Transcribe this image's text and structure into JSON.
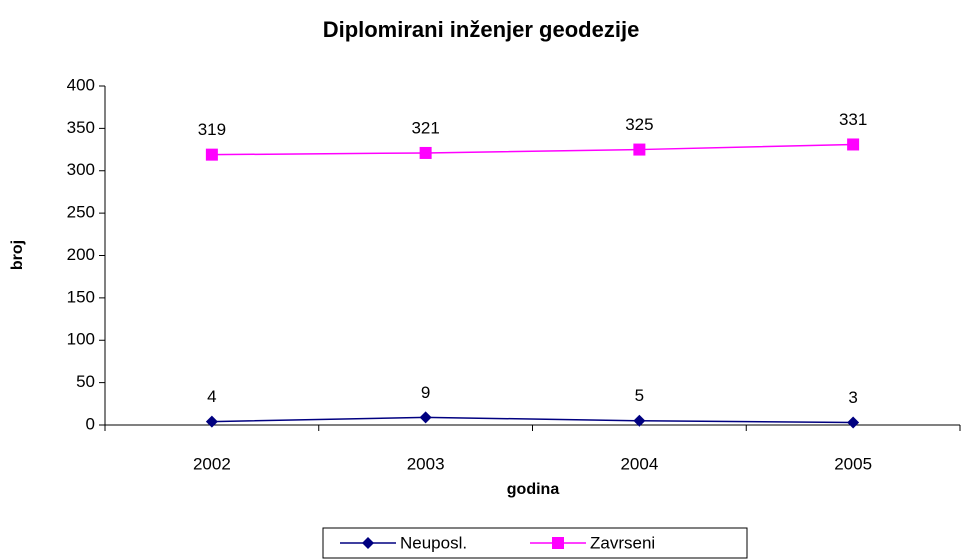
{
  "chart_data": {
    "type": "line",
    "title": "Diplomirani inženjer geodezije",
    "x_label": "godina",
    "y_label": "broj",
    "categories": [
      "2002",
      "2003",
      "2004",
      "2005"
    ],
    "series": [
      {
        "name": "Neuposl.",
        "color": "#000080",
        "marker": "diamond",
        "values": [
          4,
          9,
          5,
          3
        ]
      },
      {
        "name": "Zavrseni",
        "color": "#ff00ff",
        "marker": "square",
        "values": [
          319,
          321,
          325,
          331
        ]
      }
    ],
    "ylim": [
      0,
      400
    ],
    "yticks": [
      0,
      50,
      100,
      150,
      200,
      250,
      300,
      350,
      400
    ],
    "grid": false,
    "legend": "bottom",
    "data_labels": true
  }
}
